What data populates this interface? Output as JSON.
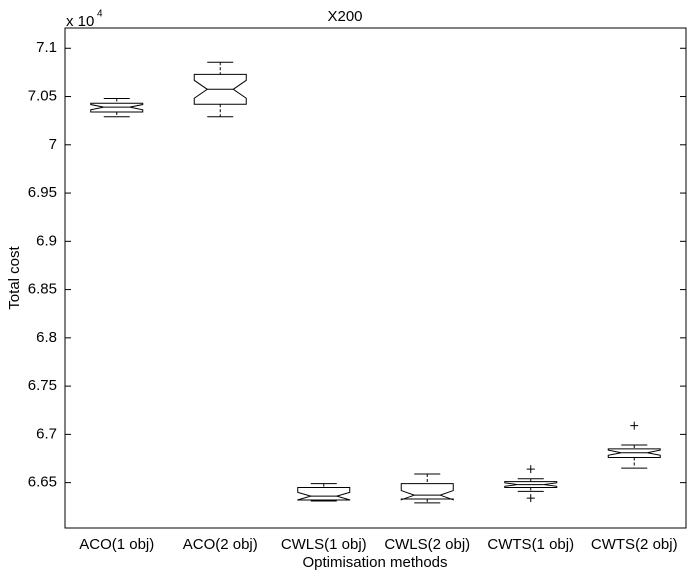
{
  "chart_data": {
    "type": "box",
    "title": "X200",
    "xlabel": "Optimisation methods",
    "ylabel": "Total cost",
    "y_multiplier": {
      "base": "x 10",
      "exponent": "4"
    },
    "categories": [
      "ACO(1 obj)",
      "ACO(2 obj)",
      "CWLS(1 obj)",
      "CWLS(2 obj)",
      "CWTS(1 obj)",
      "CWTS(2 obj)"
    ],
    "boxes": [
      {
        "low": 7.029,
        "q1": 7.034,
        "median": 7.039,
        "q3": 7.043,
        "high": 7.048,
        "outliers": []
      },
      {
        "low": 7.029,
        "q1": 7.042,
        "median": 7.0575,
        "q3": 7.073,
        "high": 7.0855,
        "outliers": []
      },
      {
        "low": 6.631,
        "q1": 6.632,
        "median": 6.636,
        "q3": 6.645,
        "high": 6.649,
        "outliers": []
      },
      {
        "low": 6.629,
        "q1": 6.633,
        "median": 6.637,
        "q3": 6.649,
        "high": 6.659,
        "outliers": []
      },
      {
        "low": 6.641,
        "q1": 6.645,
        "median": 6.648,
        "q3": 6.651,
        "high": 6.654,
        "outliers": [
          6.664,
          6.634
        ]
      },
      {
        "low": 6.665,
        "q1": 6.676,
        "median": 6.681,
        "q3": 6.685,
        "high": 6.689,
        "outliers": [
          6.709
        ]
      }
    ],
    "color": "#000000",
    "ylim": [
      6.603,
      7.121
    ],
    "yticks": [
      6.65,
      6.7,
      6.75,
      6.8,
      6.85,
      6.9,
      6.95,
      7,
      7.05,
      7.1
    ]
  }
}
